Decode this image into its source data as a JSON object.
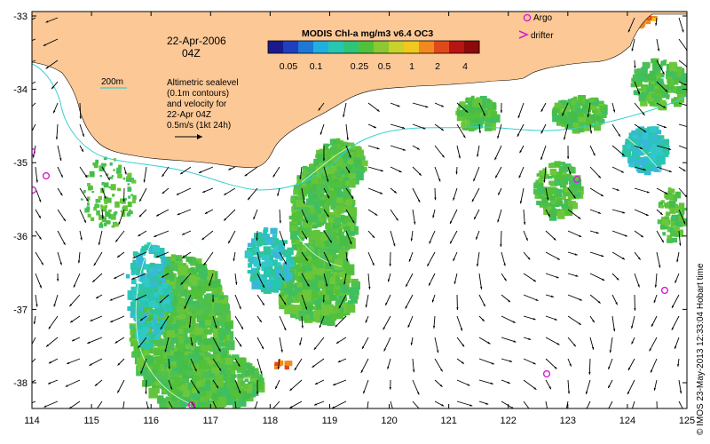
{
  "title": {
    "date": "22-Apr-2006",
    "time": "04Z"
  },
  "colorbar": {
    "title": "MODIS Chl-a mg/m3 v6.4 OC3",
    "ticks": [
      "0.05",
      "0.1",
      "0.25",
      "0.5",
      "1",
      "2",
      "4"
    ],
    "colors": [
      "#1a1a8c",
      "#1f3fbf",
      "#1f78d4",
      "#1fb0e0",
      "#26c6b0",
      "#2fc478",
      "#52c13a",
      "#8cc832",
      "#c8d22a",
      "#f0c81e",
      "#f08a1e",
      "#e04a1a",
      "#b81414",
      "#8c0a0a"
    ]
  },
  "legend": {
    "argo": "Argo",
    "drifter": "drifter",
    "argo_color": "#d21fd2",
    "drifter_color": "#d21fd2"
  },
  "annotations": {
    "isobath": "200m",
    "altimetry_lines": [
      "Altimetric sealevel",
      "(0.1m contours)",
      "and velocity for",
      "22-Apr 04Z",
      "0.5m/s (1kt 24h)"
    ]
  },
  "axes": {
    "x_ticks": [
      "114",
      "115",
      "116",
      "117",
      "118",
      "119",
      "120",
      "121",
      "122",
      "123",
      "124",
      "125"
    ],
    "y_ticks": [
      "-33",
      "-34",
      "-35",
      "-36",
      "-37",
      "-38"
    ]
  },
  "credit": "© IMOS 23-May-2013 12:33:04 Hobart time",
  "colors": {
    "land": "#fcc896",
    "isobath": "#36d0d0",
    "chl_green": "#52c13a",
    "chl_cyan": "#26c6b0",
    "chl_blue": "#1f78d4"
  }
}
